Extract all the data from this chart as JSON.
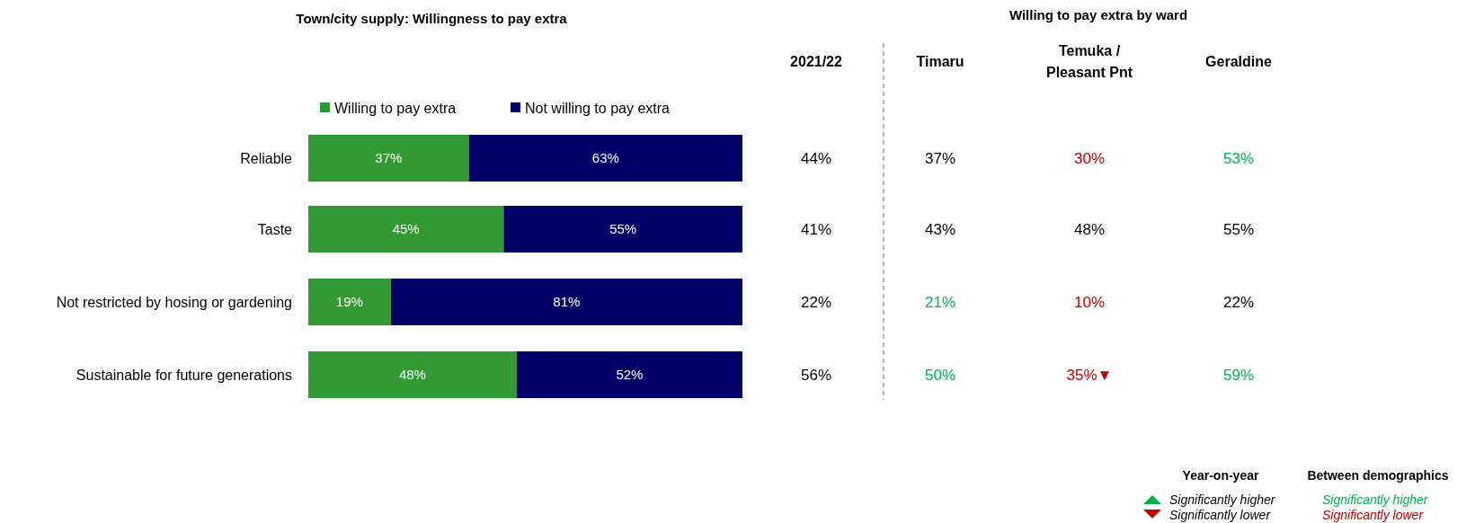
{
  "chart_data": [
    {
      "type": "bar",
      "orientation": "horizontal",
      "stacked": true,
      "title": "Town/city supply: Willingness to pay extra",
      "categories": [
        "Reliable",
        "Taste",
        "Not restricted by hosing or gardening",
        "Sustainable for future generations"
      ],
      "series": [
        {
          "name": "Willing to pay extra",
          "color": "#339933",
          "values": [
            37,
            45,
            19,
            48
          ],
          "value_labels": [
            "37%",
            "45%",
            "19%",
            "48%"
          ]
        },
        {
          "name": "Not willing to pay extra",
          "color": "#000066",
          "values": [
            63,
            55,
            81,
            52
          ],
          "value_labels": [
            "63%",
            "55%",
            "81%",
            "52%"
          ]
        }
      ],
      "legend": "top",
      "tick_labels": "y"
    },
    {
      "type": "other",
      "title": "Willing to pay extra by ward",
      "categories": [
        "2021/22",
        "Timaru",
        "Temuka / Pleasant Pnt",
        "Geraldine"
      ],
      "cell_labels": [
        [
          "44%",
          "37%",
          "30%",
          "53%"
        ],
        [
          "41%",
          "43%",
          "48%",
          "55%"
        ],
        [
          "22%",
          "21%",
          "10%",
          "22%"
        ],
        [
          "56%",
          "50%",
          "35%▼",
          "59%"
        ]
      ],
      "colors": [
        [
          "#000000",
          "#000000",
          "#c00000",
          "#00b050"
        ],
        [
          "#000000",
          "#000000",
          "#000000",
          "#000000"
        ],
        [
          "#000000",
          "#00b050",
          "#c00000",
          "#000000"
        ],
        [
          "#000000",
          "#00b050",
          "#c00000",
          "#00b050"
        ]
      ],
      "annotations": [
        "Year-on-year",
        "Significantly higher",
        "Significantly lower",
        "Between demographics",
        "Significantly higher",
        "Significantly lower"
      ]
    }
  ]
}
